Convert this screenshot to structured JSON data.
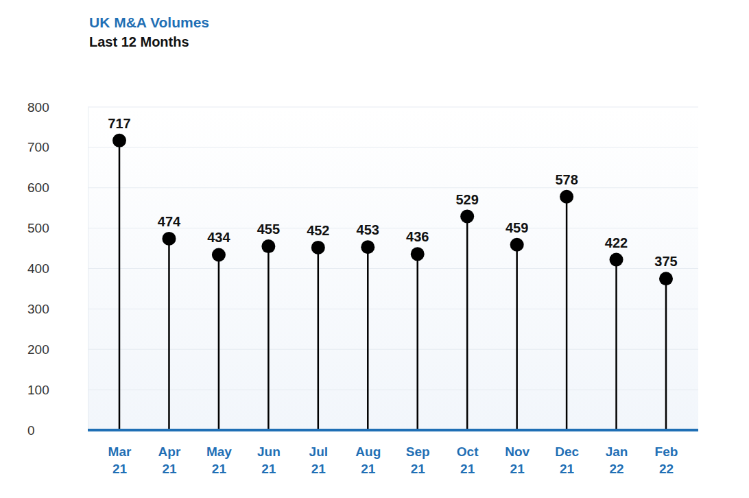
{
  "chart_data": {
    "type": "lollipop",
    "title": "UK M&A Volumes",
    "subtitle": "Last 12 Months",
    "categories": [
      "Mar 21",
      "Apr 21",
      "May 21",
      "Jun 21",
      "Jul 21",
      "Aug 21",
      "Sep 21",
      "Oct 21",
      "Nov 21",
      "Dec 21",
      "Jan 22",
      "Feb 22"
    ],
    "values": [
      717,
      474,
      434,
      455,
      452,
      453,
      436,
      529,
      459,
      578,
      422,
      375
    ],
    "color": "#000000",
    "ylim": [
      0,
      800
    ],
    "yticks": [
      0,
      100,
      200,
      300,
      400,
      500,
      600,
      700,
      800
    ],
    "grid": true,
    "data_labels": true
  }
}
